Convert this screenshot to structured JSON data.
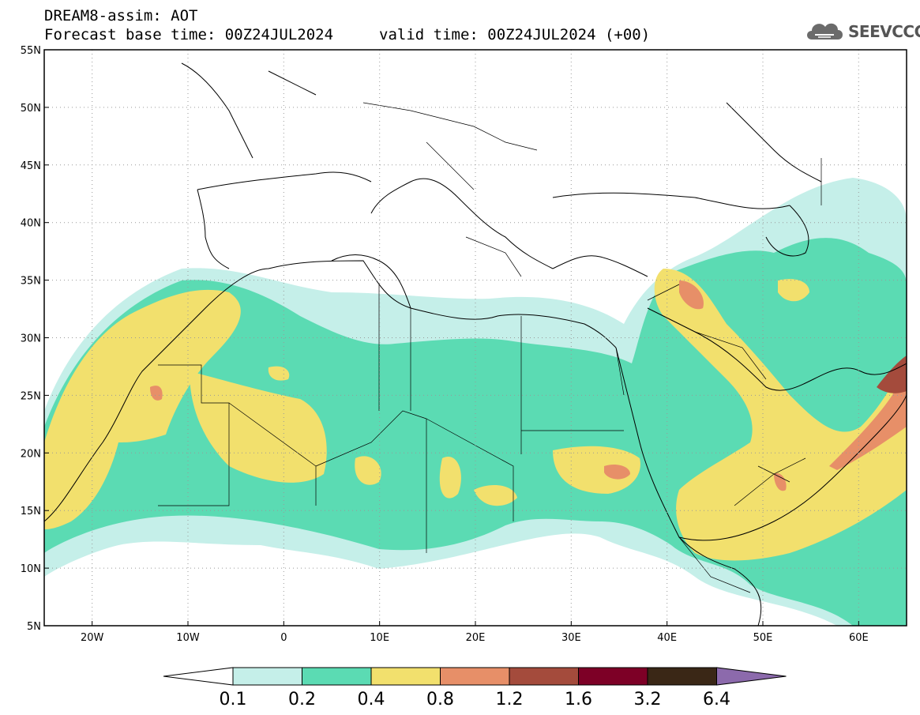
{
  "header": {
    "title": "DREAM8-assim: AOT",
    "base_time": "Forecast base time: 00Z24JUL2024",
    "valid_time": "valid time: 00Z24JUL2024 (+00)"
  },
  "logo": {
    "text": "SEEVCCC",
    "icon": "cloud-icon"
  },
  "map": {
    "lon_range": [
      -25,
      65
    ],
    "lat_range": [
      5,
      55
    ],
    "lat_labels": [
      "5N",
      "10N",
      "15N",
      "20N",
      "25N",
      "30N",
      "35N",
      "40N",
      "45N",
      "50N",
      "55N"
    ],
    "lon_labels": [
      "20W",
      "10W",
      "0",
      "10E",
      "20E",
      "30E",
      "40E",
      "50E",
      "60E"
    ],
    "gridlines": "dotted"
  },
  "colorbar": {
    "levels": [
      "0.1",
      "0.2",
      "0.4",
      "0.8",
      "1.2",
      "1.6",
      "3.2",
      "6.4"
    ],
    "colors": [
      "#c5efe9",
      "#5bdbb3",
      "#f2e06d",
      "#e78f68",
      "#a44b3c",
      "#7d0026",
      "#3a2716",
      "#8c6aac"
    ],
    "under_color": "#ffffff"
  }
}
